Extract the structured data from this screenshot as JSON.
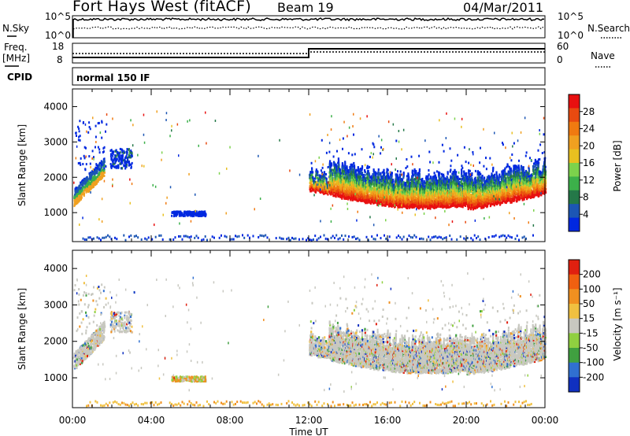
{
  "header": {
    "title": "Fort Hays West (fitACF)",
    "beam": "Beam 19",
    "date": "04/Mar/2011"
  },
  "params": {
    "nsky_label": "N.Sky",
    "nsearch_label": "N.Search",
    "freq_label_1": "Freq.",
    "freq_label_2": "[MHz]",
    "nave_label": "Nave",
    "cpid_label": "CPID",
    "cpid_value": "normal 150 IF",
    "noise_ticks_left": [
      "10^5",
      "10^0"
    ],
    "noise_ticks_right": [
      "10^5",
      "10^0"
    ],
    "freq_ticks": [
      "18",
      "8"
    ],
    "nave_ticks": [
      "60",
      "0"
    ]
  },
  "chart_data": [
    {
      "type": "heatmap",
      "name": "power",
      "ylabel": "Slant Range [km]",
      "yticks": [
        "4000",
        "3000",
        "2000",
        "1000"
      ],
      "ylim": [
        180,
        4500
      ],
      "xlim": [
        0,
        24
      ],
      "colorbar": {
        "label": "Power [dB]",
        "ticks": [
          "28",
          "24",
          "20",
          "16",
          "12",
          "8",
          "4"
        ],
        "colors": [
          "#0028e0",
          "#1c56b4",
          "#247848",
          "#3cb04a",
          "#7cd24c",
          "#e8c020",
          "#f0a020",
          "#f07a10",
          "#e84a10",
          "#e81010"
        ]
      },
      "regions": [
        {
          "t": [
            0.05,
            1.6
          ],
          "r": [
            1000,
            3600
          ],
          "note": "scatter"
        },
        {
          "t": [
            1.8,
            3.1
          ],
          "r": [
            2100,
            2900
          ]
        },
        {
          "t": [
            5.0,
            6.8
          ],
          "r": [
            850,
            1050
          ]
        },
        {
          "t": [
            12.0,
            24.0
          ],
          "r": [
            1050,
            2300
          ]
        }
      ]
    },
    {
      "type": "heatmap",
      "name": "velocity",
      "ylabel": "Slant Range [km]",
      "yticks": [
        "4000",
        "3000",
        "2000",
        "1000"
      ],
      "ylim": [
        180,
        4500
      ],
      "xlim": [
        0,
        24
      ],
      "xlabel": "Time UT",
      "xticks": [
        "00:00",
        "04:00",
        "08:00",
        "12:00",
        "16:00",
        "20:00",
        "00:00"
      ],
      "colorbar": {
        "label": "Velocity [m s⁻¹]",
        "ticks": [
          "200",
          "100",
          "50",
          "15",
          "-15",
          "-50",
          "-100",
          "-200"
        ],
        "colors": [
          "#1030c0",
          "#3070d0",
          "#40a040",
          "#90d040",
          "#c8c8c0",
          "#f0c040",
          "#f09020",
          "#f06010",
          "#e02010"
        ]
      }
    }
  ]
}
